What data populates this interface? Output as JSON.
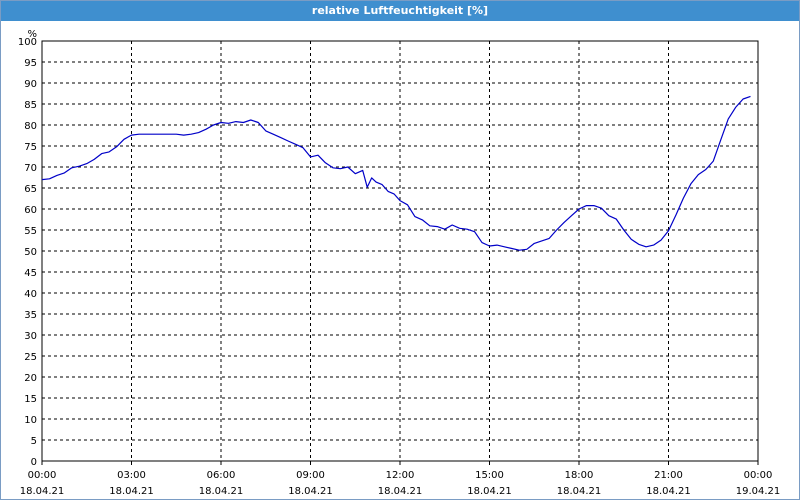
{
  "window": {
    "title": "relative Luftfeuchtigkeit [%]"
  },
  "chart_data": {
    "type": "line",
    "title": "relative Luftfeuchtigkeit [%]",
    "ylabel": "%",
    "xlabel": "",
    "ylim": [
      0,
      100
    ],
    "xlim": [
      0,
      24
    ],
    "y_ticks": [
      0,
      5,
      10,
      15,
      20,
      25,
      30,
      35,
      40,
      45,
      50,
      55,
      60,
      65,
      70,
      75,
      80,
      85,
      90,
      95,
      100
    ],
    "x_ticks": [
      {
        "x": 0,
        "time": "00:00",
        "date": "18.04.21"
      },
      {
        "x": 3,
        "time": "03:00",
        "date": "18.04.21"
      },
      {
        "x": 6,
        "time": "06:00",
        "date": "18.04.21"
      },
      {
        "x": 9,
        "time": "09:00",
        "date": "18.04.21"
      },
      {
        "x": 12,
        "time": "12:00",
        "date": "18.04.21"
      },
      {
        "x": 15,
        "time": "15:00",
        "date": "18.04.21"
      },
      {
        "x": 18,
        "time": "18:00",
        "date": "18.04.21"
      },
      {
        "x": 21,
        "time": "21:00",
        "date": "18.04.21"
      },
      {
        "x": 24,
        "time": "00:00",
        "date": "19.04.21"
      }
    ],
    "grid": true,
    "series": [
      {
        "color": "#0000c8",
        "x": [
          0.0,
          0.25,
          0.5,
          0.75,
          1.0,
          1.25,
          1.5,
          1.75,
          2.0,
          2.25,
          2.5,
          2.75,
          3.0,
          3.25,
          3.5,
          4.0,
          4.5,
          4.75,
          5.0,
          5.25,
          5.5,
          5.75,
          6.0,
          6.25,
          6.5,
          6.75,
          7.0,
          7.25,
          7.5,
          7.75,
          8.0,
          8.25,
          8.5,
          8.75,
          9.0,
          9.25,
          9.5,
          9.75,
          10.0,
          10.25,
          10.5,
          10.75,
          10.9,
          11.05,
          11.2,
          11.4,
          11.6,
          11.8,
          12.0,
          12.25,
          12.5,
          12.75,
          13.0,
          13.25,
          13.5,
          13.75,
          14.0,
          14.25,
          14.5,
          14.75,
          15.0,
          15.25,
          15.5,
          15.75,
          16.0,
          16.25,
          16.5,
          16.75,
          17.0,
          17.25,
          17.5,
          17.75,
          18.0,
          18.25,
          18.5,
          18.75,
          19.0,
          19.25,
          19.5,
          19.75,
          20.0,
          20.25,
          20.5,
          20.75,
          21.0,
          21.25,
          21.5,
          21.75,
          22.0,
          22.25,
          22.5,
          22.75,
          23.0,
          23.25,
          23.5,
          23.75
        ],
        "y": [
          67,
          67.2,
          68,
          68.6,
          69.8,
          70.2,
          70.8,
          71.8,
          73.2,
          73.6,
          74.8,
          76.6,
          77.6,
          77.8,
          77.8,
          77.8,
          77.8,
          77.6,
          77.8,
          78.2,
          79.0,
          80.0,
          80.6,
          80.4,
          80.8,
          80.6,
          81.2,
          80.6,
          78.6,
          77.8,
          77.0,
          76.2,
          75.4,
          74.6,
          72.4,
          72.8,
          71.0,
          69.8,
          69.6,
          70.0,
          68.4,
          69.2,
          65.2,
          67.4,
          66.4,
          65.8,
          64.2,
          63.6,
          62.0,
          61.0,
          58.2,
          57.4,
          56.0,
          55.8,
          55.2,
          56.2,
          55.4,
          55.2,
          54.6,
          52.0,
          51.2,
          51.4,
          51.0,
          50.6,
          50.2,
          50.4,
          51.8,
          52.4,
          53.0,
          55.0,
          56.8,
          58.4,
          60.0,
          60.8,
          60.8,
          60.2,
          58.4,
          57.6,
          55.0,
          52.8,
          51.6,
          51.0,
          51.4,
          52.6,
          54.8,
          58.6,
          62.6,
          66.0,
          68.2,
          69.4,
          71.4,
          76.4,
          81.4,
          84.2,
          86.2,
          86.8
        ]
      }
    ]
  }
}
